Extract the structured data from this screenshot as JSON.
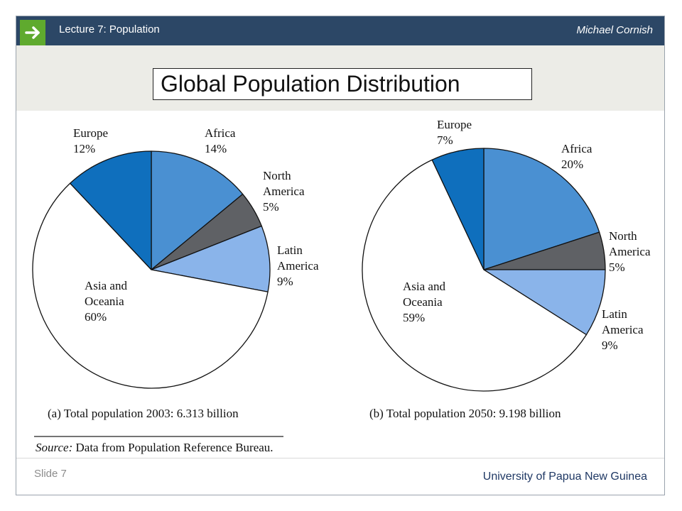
{
  "header": {
    "lecture": "Lecture 7:  Population",
    "author": "Michael Cornish",
    "title": "Global Population Distribution"
  },
  "footer": {
    "slide_label": "Slide 7",
    "university": "University of Papua New Guinea"
  },
  "colors": {
    "header_bar": "#2c4766",
    "arrow_box": "#5faa2e",
    "title_band": "#ecece7",
    "africa": "#4a90d2",
    "north_america": "#5f6165",
    "latin_america": "#8ab4ea",
    "asia_oceania": "#ffffff",
    "europe": "#0f6fbd"
  },
  "icons": {
    "header_arrow": "right-arrow-icon"
  },
  "source": {
    "prefix": "Source:",
    "text": " Data from Population Reference Bureau."
  },
  "chart_data": [
    {
      "type": "pie",
      "caption": "(a) Total population 2003: 6.313 billion",
      "slices": [
        {
          "label": [
            "Africa",
            "14%"
          ],
          "value": 14
        },
        {
          "label": [
            "North",
            "America",
            "5%"
          ],
          "value": 5
        },
        {
          "label": [
            "Latin",
            "America",
            "9%"
          ],
          "value": 9
        },
        {
          "label": [
            "Asia and",
            "Oceania",
            "60%"
          ],
          "value": 60
        },
        {
          "label": [
            "Europe",
            "12%"
          ],
          "value": 12
        }
      ]
    },
    {
      "type": "pie",
      "caption": "(b) Total population 2050: 9.198 billion",
      "slices": [
        {
          "label": [
            "Africa",
            "20%"
          ],
          "value": 20
        },
        {
          "label": [
            "North",
            "America",
            "5%"
          ],
          "value": 5
        },
        {
          "label": [
            "Latin",
            "America",
            "9%"
          ],
          "value": 9
        },
        {
          "label": [
            "Asia and",
            "Oceania",
            "59%"
          ],
          "value": 59
        },
        {
          "label": [
            "Europe",
            "7%"
          ],
          "value": 7
        }
      ]
    }
  ]
}
